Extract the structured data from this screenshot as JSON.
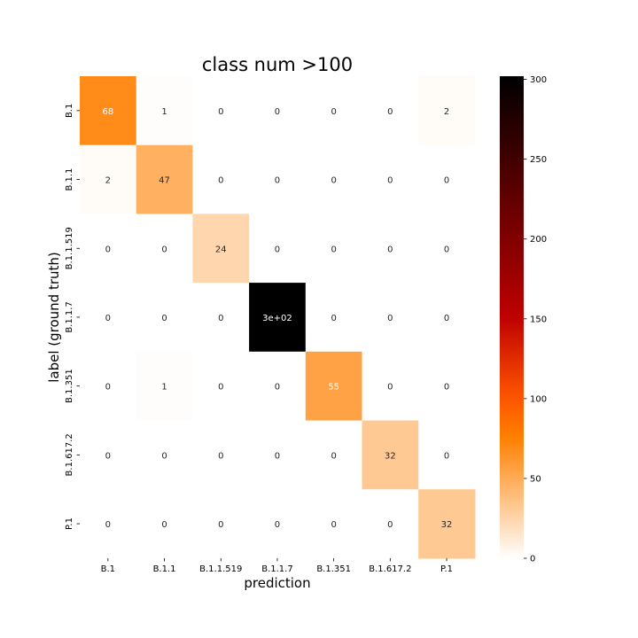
{
  "chart_data": {
    "type": "heatmap",
    "title": "class num >100",
    "xlabel": "prediction",
    "ylabel": "label (ground truth)",
    "x_categories": [
      "B.1",
      "B.1.1",
      "B.1.1.519",
      "B.1.1.7",
      "B.1.351",
      "B.1.617.2",
      "P.1"
    ],
    "y_categories": [
      "B.1",
      "B.1.1",
      "B.1.1.519",
      "B.1.1.7",
      "B.1.351",
      "B.1.617.2",
      "P.1"
    ],
    "values": [
      [
        68,
        1,
        0,
        0,
        0,
        0,
        2
      ],
      [
        2,
        47,
        0,
        0,
        0,
        0,
        0
      ],
      [
        0,
        0,
        24,
        0,
        0,
        0,
        0
      ],
      [
        0,
        0,
        0,
        302,
        0,
        0,
        0
      ],
      [
        0,
        1,
        0,
        0,
        55,
        0,
        0
      ],
      [
        0,
        0,
        0,
        0,
        0,
        32,
        0
      ],
      [
        0,
        0,
        0,
        0,
        0,
        0,
        32
      ]
    ],
    "annotations": [
      [
        "68",
        "1",
        "0",
        "0",
        "0",
        "0",
        "2"
      ],
      [
        "2",
        "47",
        "0",
        "0",
        "0",
        "0",
        "0"
      ],
      [
        "0",
        "0",
        "24",
        "0",
        "0",
        "0",
        "0"
      ],
      [
        "0",
        "0",
        "0",
        "3e+02",
        "0",
        "0",
        "0"
      ],
      [
        "0",
        "1",
        "0",
        "0",
        "55",
        "0",
        "0"
      ],
      [
        "0",
        "0",
        "0",
        "0",
        "0",
        "32",
        "0"
      ],
      [
        "0",
        "0",
        "0",
        "0",
        "0",
        "0",
        "32"
      ]
    ],
    "colormap": "gist_heat_r",
    "vmin": 0,
    "vmax": 302,
    "colorbar_ticks": [
      0,
      50,
      100,
      150,
      200,
      250,
      300
    ],
    "grid": false
  }
}
